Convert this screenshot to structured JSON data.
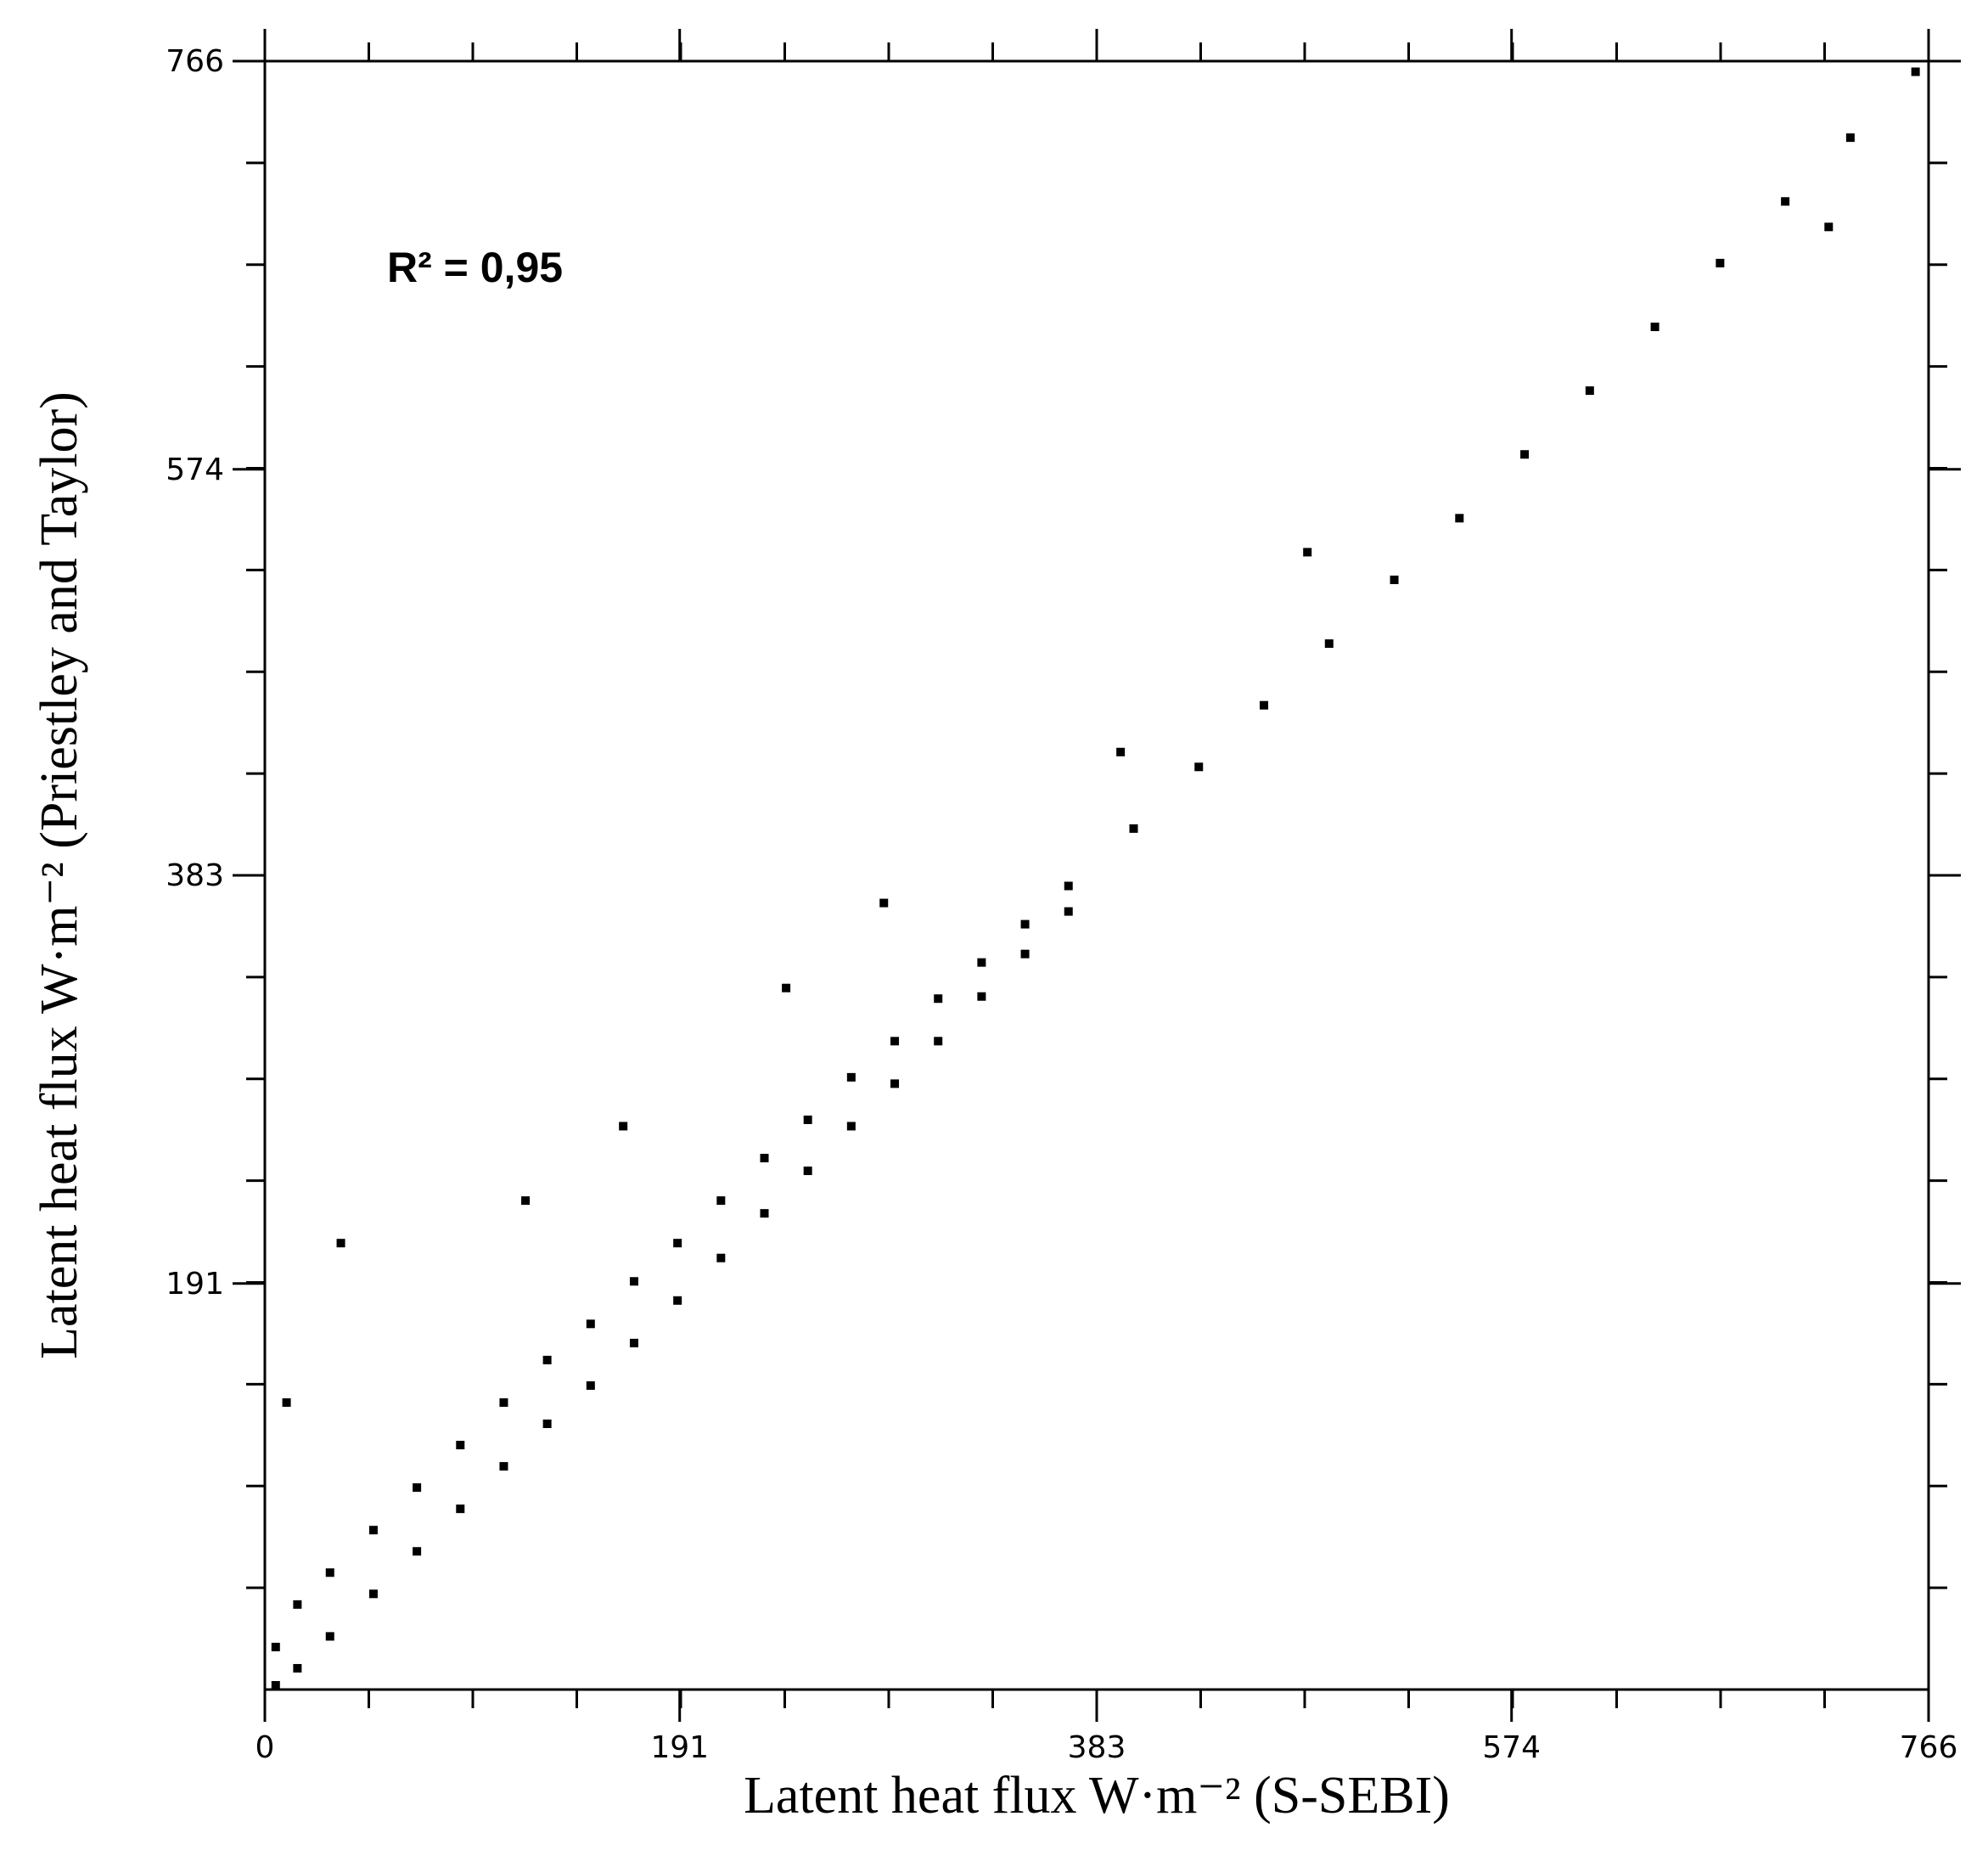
{
  "chart_data": {
    "type": "scatter",
    "xlabel": "Latent heat flux  W·m⁻²  (S-SEBI)",
    "ylabel": "Latent heat flux  W·m⁻² (Priestley and Taylor)",
    "annotation": "R² = 0,95",
    "color": "#000000",
    "xlim": [
      0,
      766
    ],
    "ylim": [
      0,
      766
    ],
    "xticks": [
      0,
      191,
      383,
      574,
      766
    ],
    "yticks": [
      191,
      383,
      574,
      766
    ],
    "x": [
      5,
      5,
      15,
      15,
      30,
      30,
      50,
      50,
      70,
      70,
      90,
      90,
      110,
      110,
      130,
      130,
      150,
      150,
      170,
      170,
      190,
      190,
      210,
      210,
      230,
      230,
      250,
      250,
      270,
      270,
      290,
      290,
      310,
      310,
      330,
      330,
      350,
      350,
      370,
      370,
      400,
      430,
      460,
      490,
      520,
      550,
      580,
      610,
      640,
      670,
      700,
      730,
      760,
      35,
      10,
      120,
      165,
      240,
      394,
      285,
      480,
      720
    ],
    "y": [
      20,
      2,
      40,
      10,
      55,
      25,
      75,
      45,
      95,
      65,
      115,
      85,
      135,
      105,
      155,
      125,
      172,
      143,
      192,
      163,
      210,
      183,
      230,
      203,
      250,
      224,
      268,
      244,
      288,
      265,
      305,
      285,
      325,
      305,
      342,
      326,
      360,
      346,
      378,
      366,
      405,
      434,
      463,
      492,
      522,
      551,
      581,
      611,
      641,
      671,
      700,
      730,
      761,
      210,
      135,
      230,
      265,
      330,
      441,
      370,
      535,
      688
    ]
  }
}
